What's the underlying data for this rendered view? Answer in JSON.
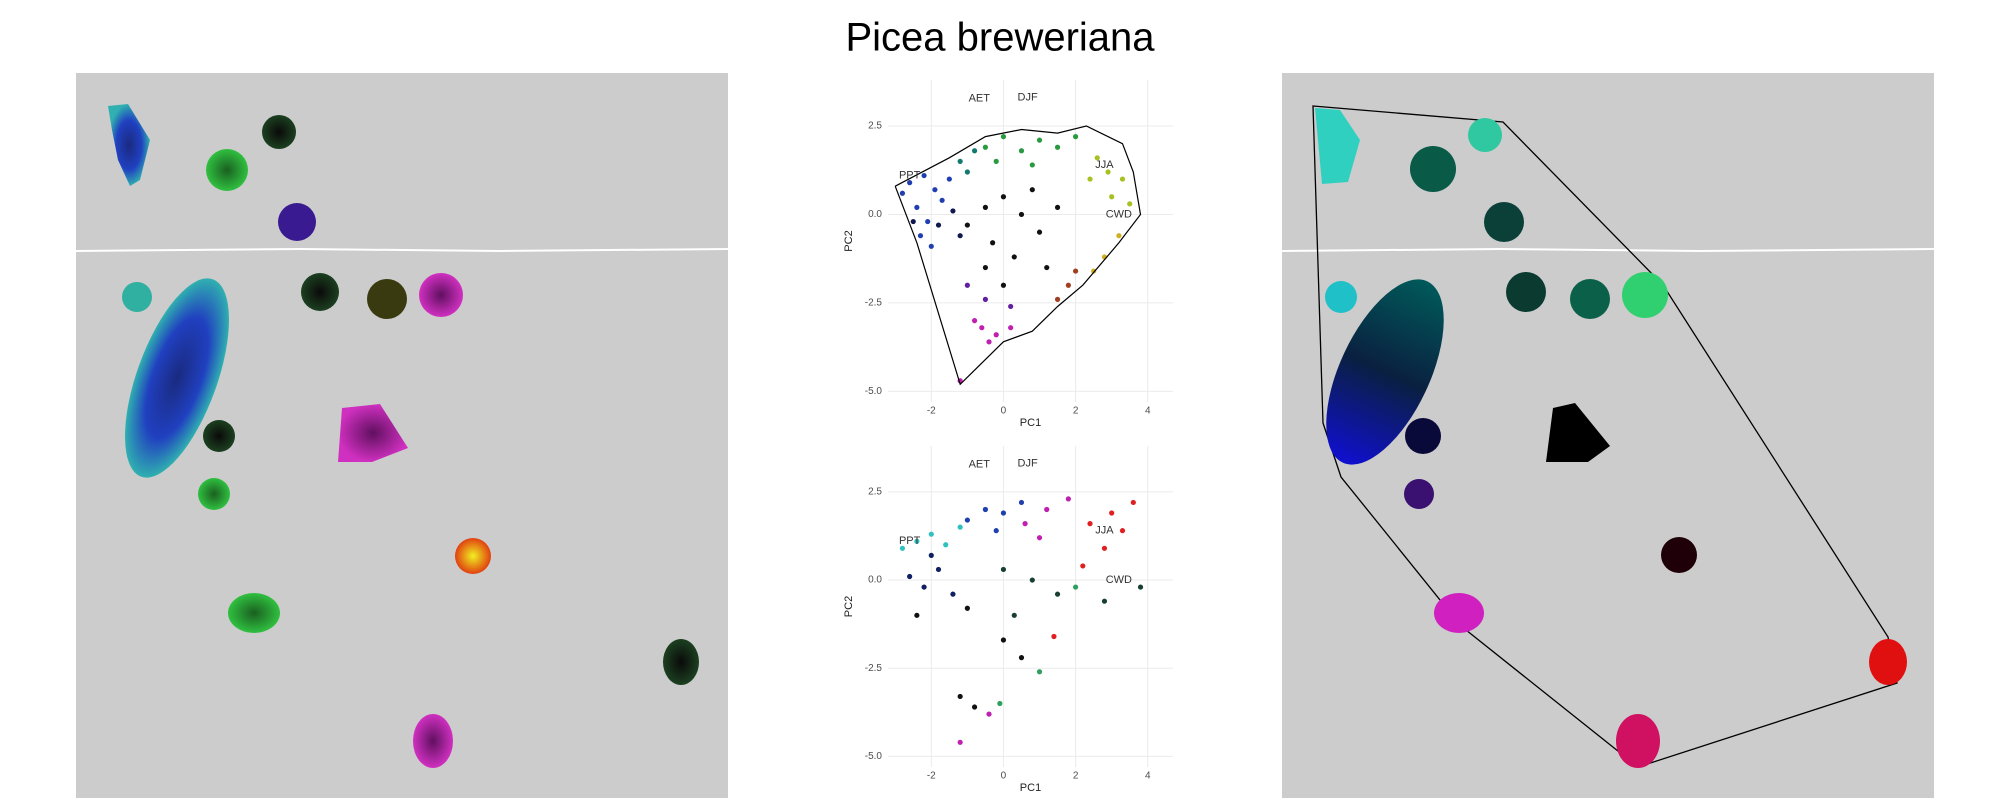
{
  "title": "Picea breweriana",
  "chart_data": [
    {
      "type": "scatter",
      "xlabel": "PC1",
      "ylabel": "PC2",
      "xlim": [
        -3.2,
        4.7
      ],
      "ylim": [
        -5.3,
        3.8
      ],
      "xticks": [
        -2,
        0,
        2,
        4
      ],
      "yticks": [
        2.5,
        {
          "value": 0,
          "label": "0.0"
        },
        -2.5,
        {
          "value": -5,
          "label": "-5.0"
        }
      ],
      "grid": true,
      "annotations": [
        {
          "text": "AET",
          "x": -0.67,
          "y": 3.27
        },
        {
          "text": "DJF",
          "x": 0.67,
          "y": 3.3
        },
        {
          "text": "PPT",
          "x": -2.6,
          "y": 1.1
        },
        {
          "text": "JJA",
          "x": 2.8,
          "y": 1.4
        },
        {
          "text": "CWD",
          "x": 3.2,
          "y": 0.0
        }
      ],
      "outline": {
        "x": [
          -3.0,
          -1.5,
          -0.5,
          0.5,
          1.5,
          2.3,
          3.3,
          3.6,
          3.8,
          3.2,
          2.2,
          1.5,
          0.8,
          0.0,
          -1.2,
          -2.4,
          -3.0
        ],
        "y": [
          0.8,
          1.6,
          2.2,
          2.4,
          2.3,
          2.5,
          2.0,
          1.2,
          0.0,
          -0.8,
          -2.0,
          -2.6,
          -3.3,
          -3.6,
          -4.8,
          -0.8,
          0.8
        ]
      },
      "series": [
        {
          "color": "#1f3fb0",
          "x": [
            -2.6,
            -2.2,
            -1.9,
            -2.4,
            -2.1,
            -1.7,
            -2.8,
            -2.3,
            -2.0,
            -1.5
          ],
          "y": [
            0.9,
            1.1,
            0.7,
            0.2,
            -0.2,
            0.4,
            0.6,
            -0.6,
            -0.9,
            1.0
          ]
        },
        {
          "color": "#101850",
          "x": [
            -1.8,
            -1.4,
            -1.2,
            -2.5
          ],
          "y": [
            -0.3,
            0.1,
            -0.6,
            -0.2
          ]
        },
        {
          "color": "#2a9a40",
          "x": [
            -0.5,
            0,
            0.5,
            1.0,
            1.5,
            -0.2,
            0.8,
            2.0
          ],
          "y": [
            1.9,
            2.2,
            1.8,
            2.1,
            1.9,
            1.5,
            1.4,
            2.2
          ]
        },
        {
          "color": "#127a70",
          "x": [
            -1.2,
            -0.8,
            -1.0
          ],
          "y": [
            1.5,
            1.8,
            1.2
          ]
        },
        {
          "color": "#a8c020",
          "x": [
            2.6,
            2.9,
            3.3,
            3.0,
            3.5,
            2.4
          ],
          "y": [
            1.6,
            1.2,
            1.0,
            0.5,
            0.3,
            1.0
          ]
        },
        {
          "color": "#d0b020",
          "x": [
            3.2,
            2.8,
            2.5
          ],
          "y": [
            -0.6,
            -1.2,
            -1.6
          ]
        },
        {
          "color": "#111111",
          "x": [
            -0.5,
            0,
            0.5,
            1.0,
            -0.3,
            0.3,
            1.5,
            0.8,
            -1.0,
            1.2,
            0.0,
            -0.5
          ],
          "y": [
            0.2,
            0.5,
            0,
            -0.5,
            -0.8,
            -1.2,
            0.2,
            0.7,
            -0.3,
            -1.5,
            -2.0,
            -1.5
          ]
        },
        {
          "color": "#a04020",
          "x": [
            1.8,
            1.5,
            2.0
          ],
          "y": [
            -2.0,
            -2.4,
            -1.6
          ]
        },
        {
          "color": "#6020a0",
          "x": [
            -1.0,
            -0.5,
            0.2
          ],
          "y": [
            -2.0,
            -2.4,
            -2.6
          ]
        },
        {
          "color": "#c020b0",
          "x": [
            -0.6,
            -0.2,
            0.2,
            -0.4,
            -1.2,
            -0.8
          ],
          "y": [
            -3.2,
            -3.4,
            -3.2,
            -3.6,
            -4.7,
            -3.0
          ]
        }
      ]
    },
    {
      "type": "scatter",
      "xlabel": "PC1",
      "ylabel": "PC2",
      "xlim": [
        -3.2,
        4.7
      ],
      "ylim": [
        -5.3,
        3.8
      ],
      "xticks": [
        -2,
        0,
        2,
        4
      ],
      "yticks": [
        2.5,
        {
          "value": 0,
          "label": "0.0"
        },
        -2.5,
        {
          "value": -5,
          "label": "-5.0"
        }
      ],
      "grid": true,
      "annotations": [
        {
          "text": "AET",
          "x": -0.67,
          "y": 3.27
        },
        {
          "text": "DJF",
          "x": 0.67,
          "y": 3.3
        },
        {
          "text": "PPT",
          "x": -2.6,
          "y": 1.1
        },
        {
          "text": "JJA",
          "x": 2.8,
          "y": 1.4
        },
        {
          "text": "CWD",
          "x": 3.2,
          "y": 0.0
        }
      ],
      "series": [
        {
          "color": "#30c0c0",
          "x": [
            -2.8,
            -2.4,
            -2.0,
            -1.6,
            -1.2
          ],
          "y": [
            0.9,
            1.1,
            1.3,
            1.0,
            1.5
          ]
        },
        {
          "color": "#2040b0",
          "x": [
            -1.0,
            -0.5,
            0,
            0.5,
            -0.2
          ],
          "y": [
            1.7,
            2.0,
            1.9,
            2.2,
            1.4
          ]
        },
        {
          "color": "#102060",
          "x": [
            -2.6,
            -2.2,
            -1.8,
            -1.4,
            -2.0
          ],
          "y": [
            0.1,
            -0.2,
            0.3,
            -0.4,
            0.7
          ]
        },
        {
          "color": "#111111",
          "x": [
            -2.4,
            -1.0,
            0.0,
            0.5,
            -1.2,
            -0.8
          ],
          "y": [
            -1.0,
            -0.8,
            -1.7,
            -2.2,
            -3.3,
            -3.6
          ]
        },
        {
          "color": "#c020b0",
          "x": [
            0.6,
            1.2,
            1.8,
            1.0,
            -0.4,
            -1.2
          ],
          "y": [
            1.6,
            2.0,
            2.3,
            1.2,
            -3.8,
            -4.6
          ]
        },
        {
          "color": "#e02020",
          "x": [
            2.4,
            3.0,
            3.6,
            2.8,
            3.3,
            2.2,
            1.4
          ],
          "y": [
            1.6,
            1.9,
            2.2,
            0.9,
            1.4,
            0.4,
            -1.6
          ]
        },
        {
          "color": "#184030",
          "x": [
            0.0,
            0.8,
            1.5,
            2.8,
            3.8,
            0.3
          ],
          "y": [
            0.3,
            0.0,
            -0.4,
            -0.6,
            -0.2,
            -1.0
          ]
        },
        {
          "color": "#30a060",
          "x": [
            2.0,
            -0.1,
            1.0
          ],
          "y": [
            -0.2,
            -3.5,
            -2.6
          ]
        }
      ]
    }
  ]
}
